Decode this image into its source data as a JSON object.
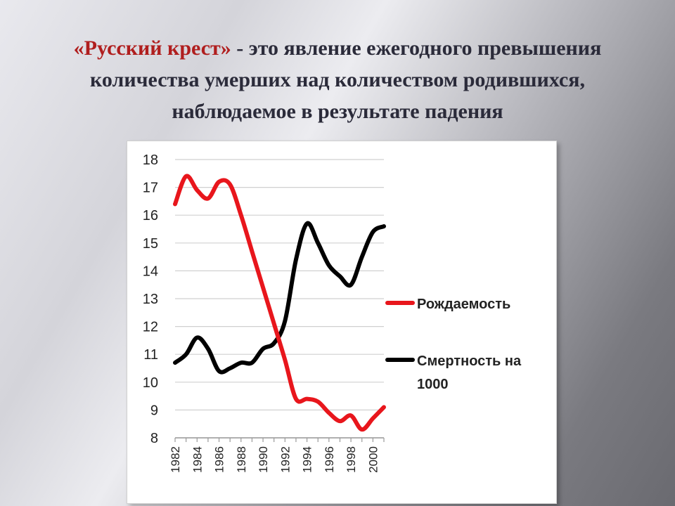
{
  "slide": {
    "title_highlight": "«Русский крест»",
    "title_rest": " - это явление ежегодного превышения количества умерших над количеством родившихся, наблюдаемое в результате падения"
  },
  "colors": {
    "accent": "#b01e1e",
    "series_birth": "#e8161c",
    "series_death": "#000000",
    "title_text": "#2b2b3a"
  },
  "chart_data": {
    "type": "line",
    "x": [
      1982,
      1983,
      1984,
      1985,
      1986,
      1987,
      1988,
      1989,
      1990,
      1991,
      1992,
      1993,
      1994,
      1995,
      1996,
      1997,
      1998,
      1999,
      2000,
      2001
    ],
    "x_tick_labels": [
      "1982",
      "1984",
      "1986",
      "1988",
      "1990",
      "1992",
      "1994",
      "1996",
      "1998",
      "2000"
    ],
    "ylim": [
      8,
      18
    ],
    "y_ticks": [
      8,
      9,
      10,
      11,
      12,
      13,
      14,
      15,
      16,
      17,
      18
    ],
    "grid": true,
    "legend_position": "right",
    "series": [
      {
        "name": "Рождаемость",
        "color": "#e8161c",
        "values": [
          16.4,
          17.4,
          16.9,
          16.6,
          17.2,
          17.1,
          16.0,
          14.7,
          13.4,
          12.1,
          10.8,
          9.4,
          9.4,
          9.3,
          8.9,
          8.6,
          8.8,
          8.3,
          8.7,
          9.1
        ]
      },
      {
        "name": "Смертность на 1000",
        "color": "#000000",
        "values": [
          10.7,
          11.0,
          11.6,
          11.2,
          10.4,
          10.5,
          10.7,
          10.7,
          11.2,
          11.4,
          12.2,
          14.4,
          15.7,
          15.0,
          14.2,
          13.8,
          13.5,
          14.5,
          15.4,
          15.6
        ]
      }
    ]
  }
}
